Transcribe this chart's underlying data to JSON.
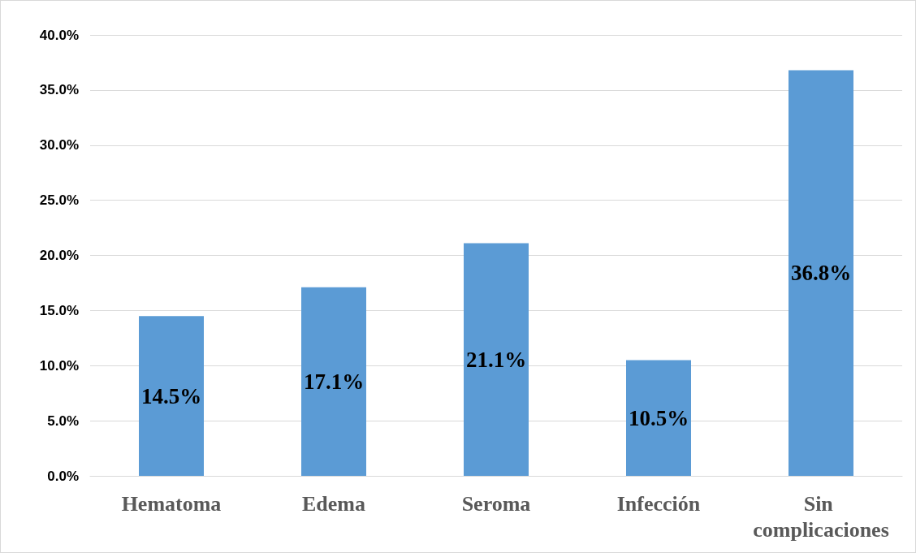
{
  "chart_data": {
    "type": "bar",
    "categories": [
      "Hematoma",
      "Edema",
      "Seroma",
      "Infección",
      "Sin complicaciones"
    ],
    "values": [
      14.5,
      17.1,
      21.1,
      10.5,
      36.8
    ],
    "value_labels": [
      "14.5%",
      "17.1%",
      "21.1%",
      "10.5%",
      "36.8%"
    ],
    "color": "#5b9bd5",
    "ylim": [
      0,
      40
    ],
    "yticks": [
      {
        "value": 0,
        "label": "0.0%"
      },
      {
        "value": 5,
        "label": "5.0%"
      },
      {
        "value": 10,
        "label": "10.0%"
      },
      {
        "value": 15,
        "label": "15.0%"
      },
      {
        "value": 20,
        "label": "20.0%"
      },
      {
        "value": 25,
        "label": "25.0%"
      },
      {
        "value": 30,
        "label": "30.0%"
      },
      {
        "value": 35,
        "label": "35.0%"
      },
      {
        "value": 40,
        "label": "40.0%"
      }
    ],
    "grid": "y"
  }
}
